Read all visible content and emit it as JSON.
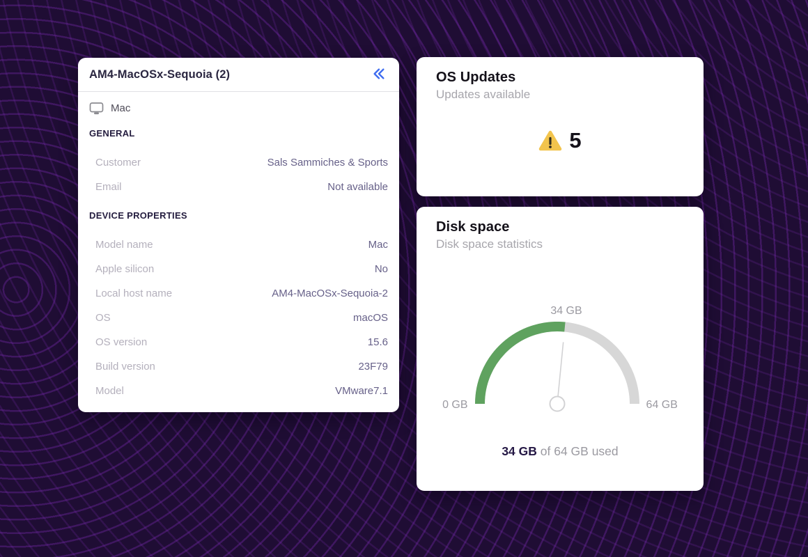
{
  "background": {
    "base_color": "#1f0d34",
    "contour_line_color": "#7c2bb5"
  },
  "device_panel": {
    "title": "AM4-MacOSx-Sequoia (2)",
    "collapse_icon": "double-chevron-left",
    "collapse_icon_color": "#3e6cf0",
    "device_icon": "monitor",
    "device_type": "Mac",
    "sections": [
      {
        "header": "GENERAL",
        "rows": [
          {
            "label": "Customer",
            "value": "Sals Sammiches & Sports"
          },
          {
            "label": "Email",
            "value": "Not available"
          }
        ]
      },
      {
        "header": "DEVICE PROPERTIES",
        "rows": [
          {
            "label": "Model name",
            "value": "Mac"
          },
          {
            "label": "Apple silicon",
            "value": "No"
          },
          {
            "label": "Local host name",
            "value": "AM4-MacOSx-Sequoia-2"
          },
          {
            "label": "OS",
            "value": "macOS"
          },
          {
            "label": "OS version",
            "value": "15.6"
          },
          {
            "label": "Build version",
            "value": "23F79"
          },
          {
            "label": "Model",
            "value": "VMware7.1"
          }
        ]
      }
    ]
  },
  "os_updates_card": {
    "title": "OS Updates",
    "subtitle": "Updates available",
    "warning_icon": "warning-triangle",
    "warning_color": "#f2c44d",
    "count": "5"
  },
  "disk_space_card": {
    "title": "Disk space",
    "subtitle": "Disk space statistics",
    "chart_data": {
      "type": "gauge",
      "used_gb": 34,
      "total_gb": 64,
      "range": [
        0,
        64
      ],
      "value_label": "34 GB",
      "min_label": "0 GB",
      "max_label": "64 GB",
      "summary_bold": "34 GB",
      "summary_rest": " of 64 GB used",
      "used_color": "#5fa25f",
      "track_color": "#d7d7d7",
      "needle_color": "#d2d2d4"
    }
  }
}
